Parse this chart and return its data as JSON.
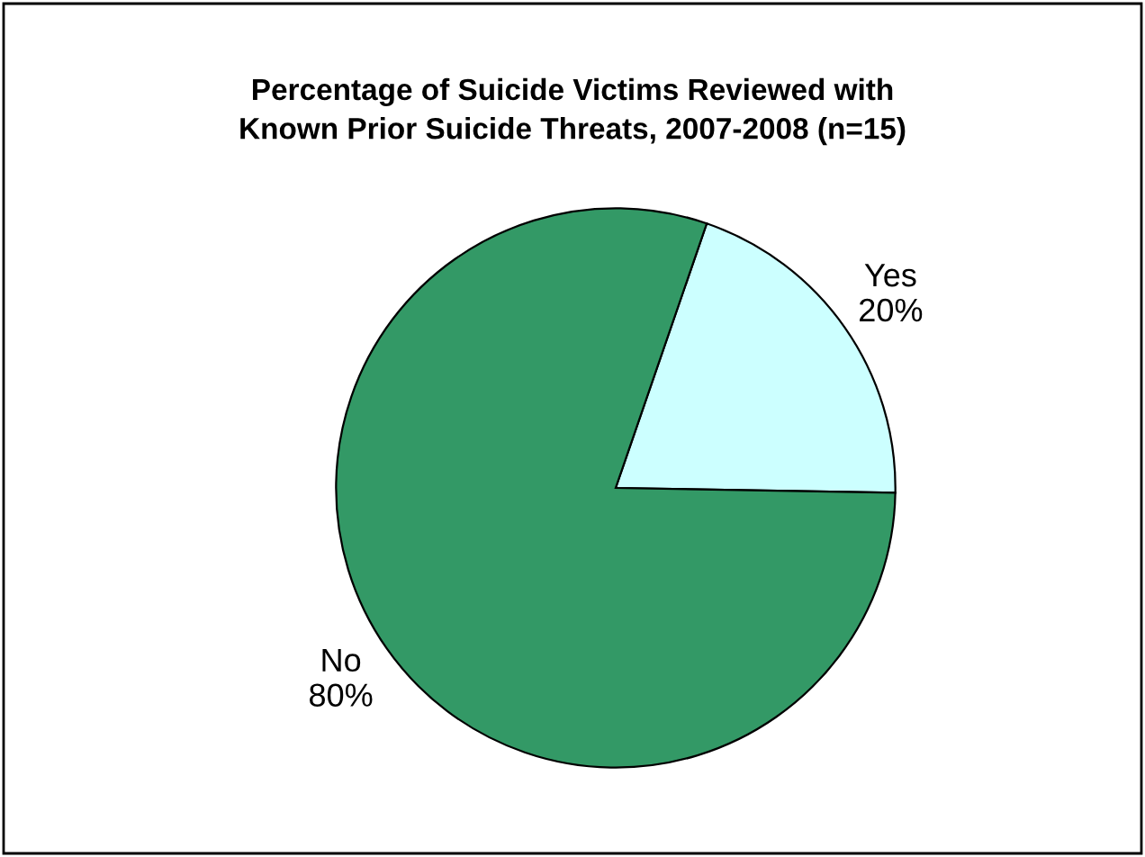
{
  "chart_data": {
    "type": "pie",
    "title": "Percentage of Suicide Victims Reviewed with\nKnown Prior Suicide Threats, 2007-2008 (n=15)",
    "categories": [
      "Yes",
      "No"
    ],
    "values": [
      20,
      80
    ],
    "value_labels": [
      "20%",
      "80%"
    ],
    "colors": [
      "#ccffff",
      "#339966"
    ],
    "legend": false
  }
}
